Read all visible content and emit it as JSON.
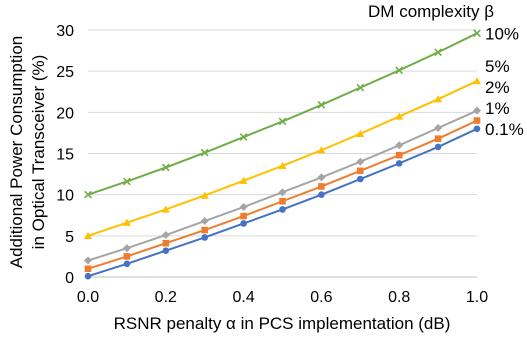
{
  "chart_data": {
    "type": "line",
    "title": "",
    "xlabel": "RSNR penalty α in PCS implementation (dB)",
    "ylabel_line1": "Additional Power Consumption",
    "ylabel_line2": "in Optical Transceiver (%)",
    "legend_title": "DM complexity β",
    "legend_placement": "top-right",
    "xlim": [
      0,
      1
    ],
    "ylim": [
      0,
      30
    ],
    "x_ticks": [
      "0.0",
      "0.2",
      "0.4",
      "0.6",
      "0.8",
      "1.0"
    ],
    "y_ticks": [
      "0",
      "5",
      "10",
      "15",
      "20",
      "25",
      "30"
    ],
    "grid": true,
    "x": [
      0.0,
      0.1,
      0.2,
      0.3,
      0.4,
      0.5,
      0.6,
      0.7,
      0.8,
      0.9,
      1.0
    ],
    "series": [
      {
        "name": "0.1%",
        "color": "#4472c4",
        "marker": "circle",
        "values": [
          0.1,
          1.6,
          3.2,
          4.8,
          6.5,
          8.2,
          10.0,
          11.9,
          13.8,
          15.8,
          18.0
        ]
      },
      {
        "name": "1%",
        "color": "#ed7d31",
        "marker": "square",
        "values": [
          1.0,
          2.5,
          4.1,
          5.7,
          7.4,
          9.2,
          11.0,
          12.9,
          14.8,
          16.8,
          19.0
        ]
      },
      {
        "name": "2%",
        "color": "#a5a5a5",
        "marker": "diamond",
        "values": [
          2.0,
          3.5,
          5.1,
          6.8,
          8.5,
          10.3,
          12.1,
          14.0,
          16.0,
          18.1,
          20.2
        ]
      },
      {
        "name": "5%",
        "color": "#ffc000",
        "marker": "triangle",
        "values": [
          5.0,
          6.6,
          8.2,
          9.9,
          11.7,
          13.5,
          15.4,
          17.4,
          19.5,
          21.6,
          23.8
        ]
      },
      {
        "name": "10%",
        "color": "#70ad47",
        "marker": "x",
        "values": [
          10.0,
          11.6,
          13.3,
          15.1,
          17.0,
          18.9,
          20.9,
          23.0,
          25.1,
          27.3,
          29.6
        ]
      }
    ]
  }
}
